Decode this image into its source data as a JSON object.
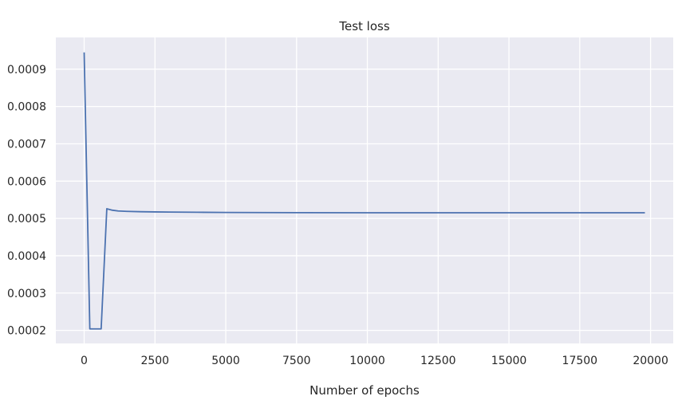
{
  "chart_data": {
    "type": "line",
    "title": "Test loss",
    "xlabel": "Number of epochs",
    "ylabel": "",
    "xlim": [
      -1000,
      20800
    ],
    "ylim": [
      0.000165,
      0.000985
    ],
    "xticks": [
      0,
      2500,
      5000,
      7500,
      10000,
      12500,
      15000,
      17500,
      20000
    ],
    "xtick_labels": [
      "0",
      "2500",
      "5000",
      "7500",
      "10000",
      "12500",
      "15000",
      "17500",
      "20000"
    ],
    "yticks": [
      0.0002,
      0.0003,
      0.0004,
      0.0005,
      0.0006,
      0.0007,
      0.0008,
      0.0009
    ],
    "ytick_labels": [
      "0.0002",
      "0.0003",
      "0.0004",
      "0.0005",
      "0.0006",
      "0.0007",
      "0.0008",
      "0.0009"
    ],
    "grid": true,
    "background_color": "#eaeaf2",
    "grid_color": "#ffffff",
    "series": [
      {
        "color": "#4c72b0",
        "x": [
          0,
          200,
          400,
          600,
          800,
          1000,
          1200,
          1500,
          2000,
          2500,
          3000,
          4000,
          5000,
          7500,
          10000,
          12500,
          15000,
          17500,
          19800
        ],
        "y": [
          0.000945,
          0.000204,
          0.000204,
          0.000204,
          0.000526,
          0.000522,
          0.00052,
          0.000519,
          0.000518,
          0.0005175,
          0.000517,
          0.0005165,
          0.000516,
          0.0005155,
          0.0005152,
          0.0005152,
          0.0005152,
          0.0005152,
          0.0005152
        ]
      }
    ]
  }
}
